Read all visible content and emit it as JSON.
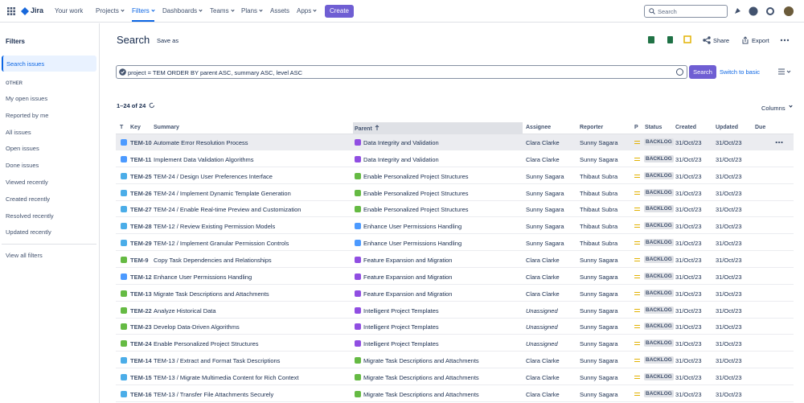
{
  "nav": {
    "app_name": "Jira",
    "items": [
      "Your work",
      "Projects",
      "Filters",
      "Dashboards",
      "Teams",
      "Plans",
      "Assets",
      "Apps"
    ],
    "create": "Create",
    "search_placeholder": "Search"
  },
  "sidebar": {
    "title": "Filters",
    "active": "Search issues",
    "section": "OTHER",
    "links": [
      "My open issues",
      "Reported by me",
      "All issues",
      "Open issues",
      "Done issues",
      "Viewed recently",
      "Created recently",
      "Resolved recently",
      "Updated recently"
    ],
    "footer": "View all filters"
  },
  "header": {
    "title": "Search",
    "save_as": "Save as",
    "share": "Share",
    "export": "Export"
  },
  "query": {
    "jql": "project = TEM ORDER BY parent ASC, summary ASC, level ASC",
    "search_button": "Search",
    "switch": "Switch to basic"
  },
  "results": {
    "count": "1–24 of 24",
    "columns_button": "Columns"
  },
  "table": {
    "columns": [
      "T",
      "Key",
      "Summary",
      "Parent",
      "Assignee",
      "Reporter",
      "P",
      "Status",
      "Created",
      "Updated",
      "Due"
    ],
    "rows": [
      {
        "key": "TEM-10",
        "summary": "Automate Error Resolution Process",
        "parent": "Data Integrity and Validation",
        "assignee": "Clara Clarke",
        "reporter": "Sunny Sagara",
        "status": "BACKLOG",
        "created": "31/Oct/23",
        "updated": "31/Oct/23"
      },
      {
        "key": "TEM-11",
        "summary": "Implement Data Validation Algorithms",
        "parent": "Data Integrity and Validation",
        "assignee": "Clara Clarke",
        "reporter": "Sunny Sagara",
        "status": "BACKLOG",
        "created": "31/Oct/23",
        "updated": "31/Oct/23"
      },
      {
        "key": "TEM-25",
        "summary": "TEM-24 / Design User Preferences Interface",
        "parent": "Enable Personalized Project Structures",
        "assignee": "Sunny Sagara",
        "reporter": "Thibaut Subra",
        "status": "BACKLOG",
        "created": "31/Oct/23",
        "updated": "31/Oct/23"
      },
      {
        "key": "TEM-26",
        "summary": "TEM-24 / Implement Dynamic Template Generation",
        "parent": "Enable Personalized Project Structures",
        "assignee": "Sunny Sagara",
        "reporter": "Thibaut Subra",
        "status": "BACKLOG",
        "created": "31/Oct/23",
        "updated": "31/Oct/23"
      },
      {
        "key": "TEM-27",
        "summary": "TEM-24 / Enable Real-time Preview and Customization",
        "parent": "Enable Personalized Project Structures",
        "assignee": "Sunny Sagara",
        "reporter": "Thibaut Subra",
        "status": "BACKLOG",
        "created": "31/Oct/23",
        "updated": "31/Oct/23"
      },
      {
        "key": "TEM-28",
        "summary": "TEM-12 / Review Existing Permission Models",
        "parent": "Enhance User Permissions Handling",
        "assignee": "Sunny Sagara",
        "reporter": "Thibaut Subra",
        "status": "BACKLOG",
        "created": "31/Oct/23",
        "updated": "31/Oct/23"
      },
      {
        "key": "TEM-29",
        "summary": "TEM-12 / Implement Granular Permission Controls",
        "parent": "Enhance User Permissions Handling",
        "assignee": "Sunny Sagara",
        "reporter": "Thibaut Subra",
        "status": "BACKLOG",
        "created": "31/Oct/23",
        "updated": "31/Oct/23"
      },
      {
        "key": "TEM-9",
        "summary": "Copy Task Dependencies and Relationships",
        "parent": "Feature Expansion and Migration",
        "assignee": "Clara Clarke",
        "reporter": "Sunny Sagara",
        "status": "BACKLOG",
        "created": "31/Oct/23",
        "updated": "31/Oct/23"
      },
      {
        "key": "TEM-12",
        "summary": "Enhance User Permissions Handling",
        "parent": "Feature Expansion and Migration",
        "assignee": "Clara Clarke",
        "reporter": "Sunny Sagara",
        "status": "BACKLOG",
        "created": "31/Oct/23",
        "updated": "31/Oct/23"
      },
      {
        "key": "TEM-13",
        "summary": "Migrate Task Descriptions and Attachments",
        "parent": "Feature Expansion and Migration",
        "assignee": "Clara Clarke",
        "reporter": "Sunny Sagara",
        "status": "BACKLOG",
        "created": "31/Oct/23",
        "updated": "31/Oct/23"
      },
      {
        "key": "TEM-22",
        "summary": "Analyze Historical Data",
        "parent": "Intelligent Project Templates",
        "assignee": "Unassigned",
        "reporter": "Sunny Sagara",
        "status": "BACKLOG",
        "created": "31/Oct/23",
        "updated": "31/Oct/23"
      },
      {
        "key": "TEM-23",
        "summary": "Develop Data-Driven Algorithms",
        "parent": "Intelligent Project Templates",
        "assignee": "Unassigned",
        "reporter": "Sunny Sagara",
        "status": "BACKLOG",
        "created": "31/Oct/23",
        "updated": "31/Oct/23"
      },
      {
        "key": "TEM-24",
        "summary": "Enable Personalized Project Structures",
        "parent": "Intelligent Project Templates",
        "assignee": "Unassigned",
        "reporter": "Sunny Sagara",
        "status": "BACKLOG",
        "created": "31/Oct/23",
        "updated": "31/Oct/23"
      },
      {
        "key": "TEM-14",
        "summary": "TEM-13 / Extract and Format Task Descriptions",
        "parent": "Migrate Task Descriptions and Attachments",
        "assignee": "Clara Clarke",
        "reporter": "Sunny Sagara",
        "status": "BACKLOG",
        "created": "31/Oct/23",
        "updated": "31/Oct/23"
      },
      {
        "key": "TEM-15",
        "summary": "TEM-13 / Migrate Multimedia Content for Rich Context",
        "parent": "Migrate Task Descriptions and Attachments",
        "assignee": "Clara Clarke",
        "reporter": "Sunny Sagara",
        "status": "BACKLOG",
        "created": "31/Oct/23",
        "updated": "31/Oct/23"
      },
      {
        "key": "TEM-16",
        "summary": "TEM-13 / Transfer File Attachments Securely",
        "parent": "Migrate Task Descriptions and Attachments",
        "assignee": "Clara Clarke",
        "reporter": "Sunny Sagara",
        "status": "BACKLOG",
        "created": "31/Oct/23",
        "updated": "31/Oct/23"
      }
    ]
  }
}
